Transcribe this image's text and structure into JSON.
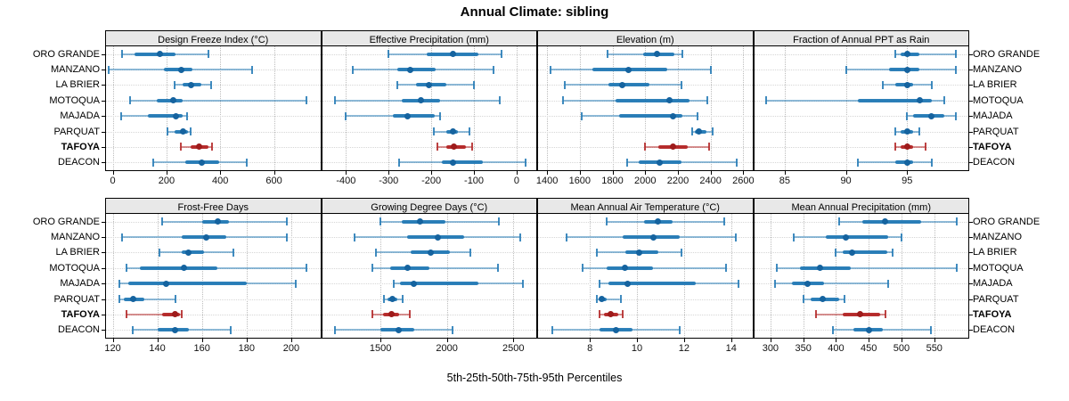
{
  "title": "Annual Climate: sibling",
  "caption": "5th-25th-50th-75th-95th Percentiles",
  "sites": [
    "ORO GRANDE",
    "MANZANO",
    "LA BRIER",
    "MOTOQUA",
    "MAJADA",
    "PARQUAT",
    "TAFOYA",
    "DEACON"
  ],
  "highlight_site": "TAFOYA",
  "colors": {
    "series": "#1f77b4",
    "series_dot": "#15639f",
    "highlight": "#b22222",
    "highlight_dot": "#9e1b1b",
    "strip_bg": "#e8e8e8",
    "grid": "#bdbdbd",
    "border": "#000000"
  },
  "chart_data": [
    {
      "type": "interval",
      "row": 0,
      "col": 0,
      "title": "Design Freeze Index (°C)",
      "xlim": [
        -25,
        772
      ],
      "ticks": [
        0,
        200,
        400,
        600
      ],
      "percentile_labels": [
        "p5",
        "p25",
        "p50",
        "p75",
        "p95"
      ],
      "values": [
        [
          35,
          80,
          175,
          235,
          355
        ],
        [
          -15,
          190,
          255,
          295,
          520
        ],
        [
          230,
          260,
          290,
          330,
          365
        ],
        [
          65,
          165,
          225,
          260,
          720
        ],
        [
          30,
          130,
          235,
          260,
          275
        ],
        [
          205,
          230,
          260,
          280,
          290
        ],
        [
          255,
          290,
          320,
          355,
          370
        ],
        [
          150,
          270,
          330,
          395,
          500
        ]
      ]
    },
    {
      "type": "interval",
      "row": 0,
      "col": 1,
      "title": "Effective Precipitation (mm)",
      "xlim": [
        -456,
        46
      ],
      "ticks": [
        -400,
        -300,
        -200,
        -100,
        0
      ],
      "percentile_labels": [
        "p5",
        "p25",
        "p50",
        "p75",
        "p95"
      ],
      "values": [
        [
          -300,
          -210,
          -150,
          -90,
          -35
        ],
        [
          -385,
          -280,
          -250,
          -190,
          -55
        ],
        [
          -280,
          -235,
          -205,
          -165,
          -100
        ],
        [
          -425,
          -270,
          -225,
          -180,
          -40
        ],
        [
          -400,
          -290,
          -255,
          -192,
          -180
        ],
        [
          -195,
          -165,
          -150,
          -138,
          -110
        ],
        [
          -185,
          -165,
          -148,
          -118,
          -105
        ],
        [
          -275,
          -175,
          -150,
          -80,
          20
        ]
      ]
    },
    {
      "type": "interval",
      "row": 0,
      "col": 2,
      "title": "Elevation (m)",
      "xlim": [
        1345,
        2655
      ],
      "ticks": [
        1400,
        1600,
        1800,
        2000,
        2200,
        2400,
        2600
      ],
      "percentile_labels": [
        "p5",
        "p25",
        "p50",
        "p75",
        "p95"
      ],
      "values": [
        [
          1770,
          1990,
          2070,
          2180,
          2230
        ],
        [
          1420,
          1675,
          1900,
          2135,
          2400
        ],
        [
          1510,
          1775,
          1860,
          2025,
          2220
        ],
        [
          1500,
          1820,
          2150,
          2270,
          2380
        ],
        [
          1610,
          1840,
          2170,
          2230,
          2320
        ],
        [
          2290,
          2305,
          2330,
          2375,
          2410
        ],
        [
          2000,
          2080,
          2170,
          2260,
          2390
        ],
        [
          1890,
          1960,
          2090,
          2220,
          2560
        ]
      ]
    },
    {
      "type": "interval",
      "row": 0,
      "col": 3,
      "title": "Fraction of Annual PPT as Rain",
      "xlim": [
        82.5,
        100
      ],
      "ticks": [
        85,
        90,
        95
      ],
      "percentile_labels": [
        "p5",
        "p25",
        "p50",
        "p75",
        "p95"
      ],
      "values": [
        [
          94,
          94.5,
          95,
          96,
          99
        ],
        [
          90,
          93.5,
          95,
          96,
          99
        ],
        [
          93,
          94,
          95,
          95.5,
          97
        ],
        [
          83.5,
          91,
          96,
          97,
          98
        ],
        [
          95,
          95.5,
          97,
          98,
          99
        ],
        [
          94,
          94.5,
          95,
          95.5,
          96
        ],
        [
          94,
          94.5,
          95,
          95.5,
          96.5
        ],
        [
          91,
          94,
          95,
          95.5,
          97
        ]
      ]
    },
    {
      "type": "interval",
      "row": 1,
      "col": 0,
      "title": "Frost-Free Days",
      "xlim": [
        117,
        213
      ],
      "ticks": [
        120,
        140,
        160,
        180,
        200
      ],
      "percentile_labels": [
        "p5",
        "p25",
        "p50",
        "p75",
        "p95"
      ],
      "values": [
        [
          142,
          160,
          167,
          172,
          198
        ],
        [
          124,
          151,
          162,
          171,
          198
        ],
        [
          141,
          151,
          154,
          161,
          174
        ],
        [
          126,
          132,
          152,
          167,
          207
        ],
        [
          123,
          127,
          144,
          180,
          202
        ],
        [
          123,
          125,
          129,
          134,
          148
        ],
        [
          126,
          142,
          148,
          150,
          151
        ],
        [
          129,
          140,
          148,
          154,
          173
        ]
      ]
    },
    {
      "type": "interval",
      "row": 1,
      "col": 1,
      "title": "Growing Degree Days (°C)",
      "xlim": [
        1060,
        2673
      ],
      "ticks": [
        1500,
        2000,
        2500
      ],
      "percentile_labels": [
        "p5",
        "p25",
        "p50",
        "p75",
        "p95"
      ],
      "values": [
        [
          1500,
          1660,
          1800,
          1990,
          2390
        ],
        [
          1305,
          1700,
          1930,
          2130,
          2550
        ],
        [
          1465,
          1730,
          1875,
          2020,
          2180
        ],
        [
          1440,
          1570,
          1705,
          1865,
          2385
        ],
        [
          1600,
          1645,
          1750,
          2240,
          2570
        ],
        [
          1525,
          1550,
          1590,
          1625,
          1670
        ],
        [
          1440,
          1520,
          1585,
          1640,
          1720
        ],
        [
          1160,
          1500,
          1640,
          1755,
          2040
        ]
      ]
    },
    {
      "type": "interval",
      "row": 1,
      "col": 2,
      "title": "Mean Annual Air Temperature (°C)",
      "xlim": [
        5.8,
        14.9
      ],
      "ticks": [
        8,
        10,
        12,
        14
      ],
      "percentile_labels": [
        "p5",
        "p25",
        "p50",
        "p75",
        "p95"
      ],
      "values": [
        [
          8.7,
          10.3,
          10.9,
          11.5,
          13.7
        ],
        [
          7.0,
          9.4,
          10.7,
          11.8,
          14.2
        ],
        [
          8.3,
          9.5,
          10.1,
          10.9,
          11.9
        ],
        [
          7.7,
          8.7,
          9.5,
          10.7,
          13.8
        ],
        [
          8.4,
          8.8,
          9.6,
          12.5,
          14.3
        ],
        [
          8.3,
          8.4,
          8.5,
          8.7,
          9.3
        ],
        [
          8.4,
          8.6,
          8.9,
          9.2,
          9.4
        ],
        [
          6.4,
          8.4,
          9.1,
          9.8,
          11.8
        ]
      ]
    },
    {
      "type": "interval",
      "row": 1,
      "col": 3,
      "title": "Mean Annual Precipitation (mm)",
      "xlim": [
        275,
        602
      ],
      "ticks": [
        300,
        350,
        400,
        450,
        500,
        550
      ],
      "percentile_labels": [
        "p5",
        "p25",
        "p50",
        "p75",
        "p95"
      ],
      "values": [
        [
          405,
          440,
          475,
          530,
          585
        ],
        [
          335,
          385,
          415,
          480,
          500
        ],
        [
          400,
          410,
          425,
          478,
          487
        ],
        [
          310,
          345,
          375,
          422,
          585
        ],
        [
          307,
          333,
          357,
          382,
          480
        ],
        [
          350,
          362,
          380,
          405,
          413
        ],
        [
          370,
          410,
          437,
          467,
          475
        ],
        [
          396,
          427,
          450,
          472,
          545
        ]
      ]
    }
  ]
}
